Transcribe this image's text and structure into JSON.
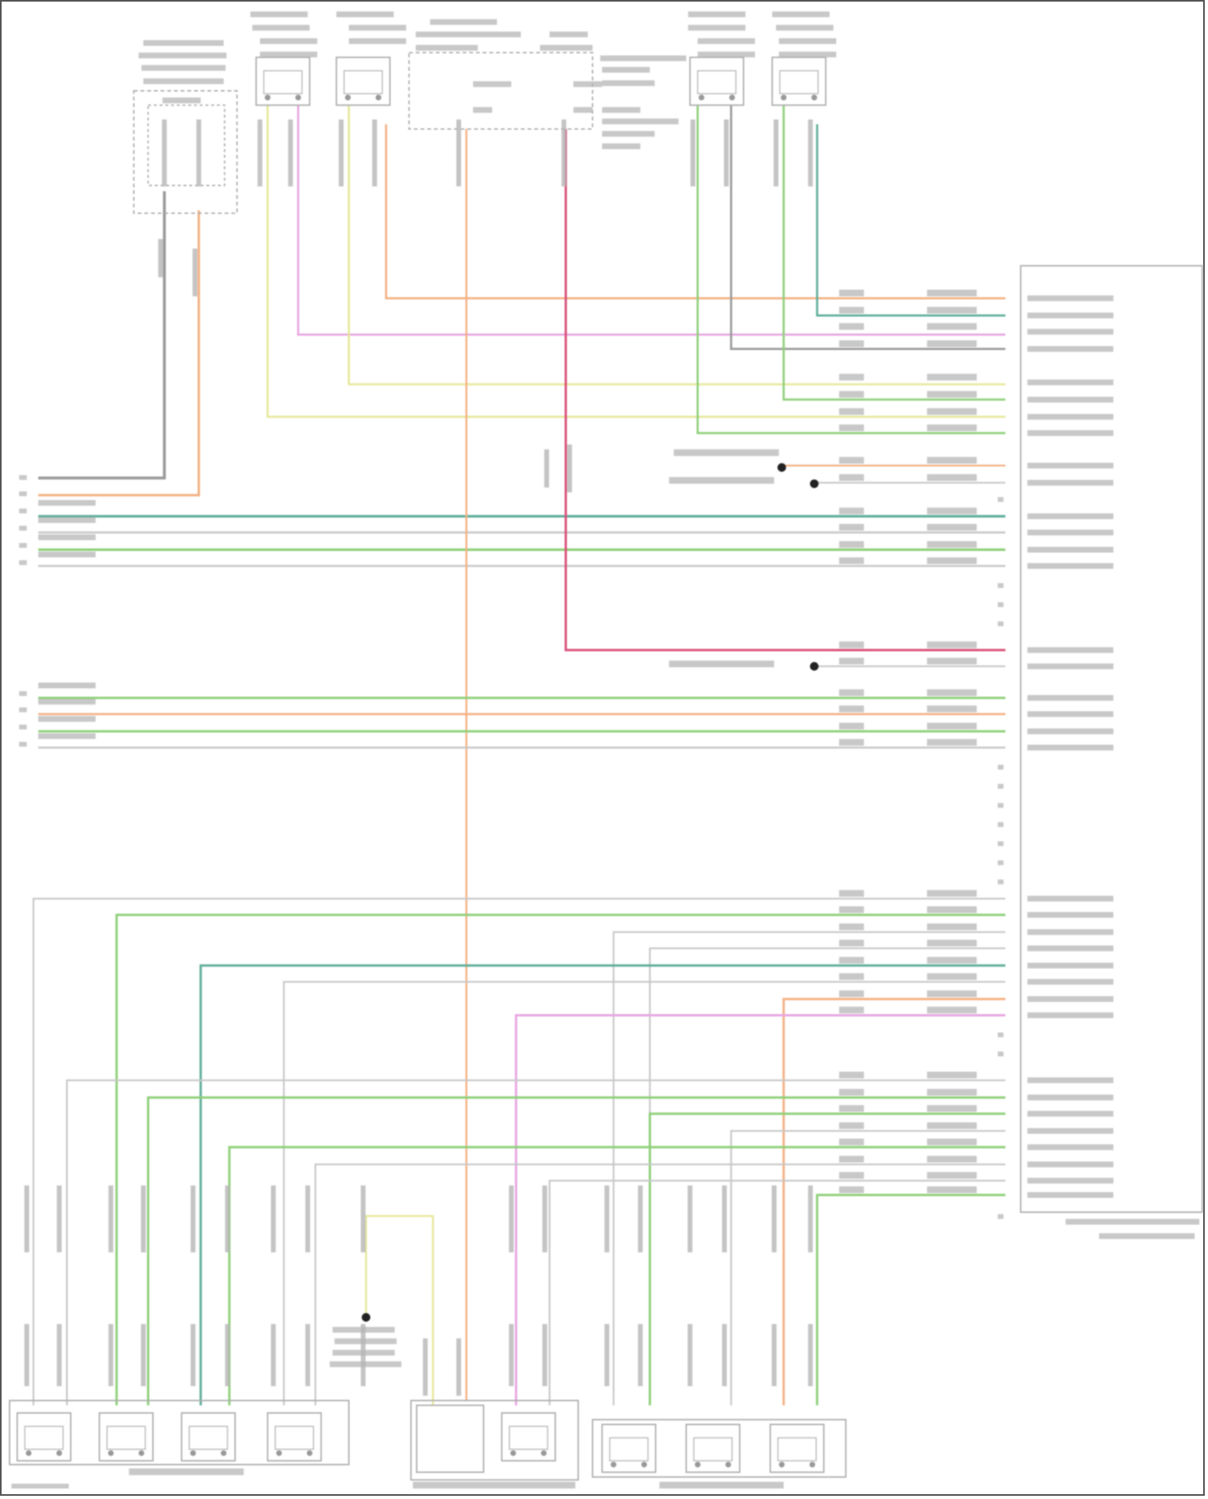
{
  "diagram": {
    "type": "automotive audio wiring diagram",
    "colors": {
      "gray": "#9a9a9a",
      "orange": "#f4b183",
      "yellow": "#e6e89a",
      "pink": "#e7a6e2",
      "red": "#d9507a",
      "green": "#8fd07a",
      "teal": "#5fae9a",
      "lightgray": "#c8c8c8",
      "label": "#b5b5b5"
    },
    "components": [
      {
        "icon": "microphone-connector-icon"
      },
      {
        "icon": "speaker-connector-icon"
      },
      {
        "icon": "speaker-connector-icon"
      },
      {
        "icon": "radio-module-icon"
      },
      {
        "icon": "speaker-connector-icon"
      },
      {
        "icon": "speaker-connector-icon"
      },
      {
        "icon": "amplifier-connector-icon"
      },
      {
        "icon": "speaker-group-icon"
      },
      {
        "icon": "speaker-group-icon"
      },
      {
        "icon": "speaker-group-icon"
      },
      {
        "icon": "ground-splice-icon"
      }
    ]
  }
}
